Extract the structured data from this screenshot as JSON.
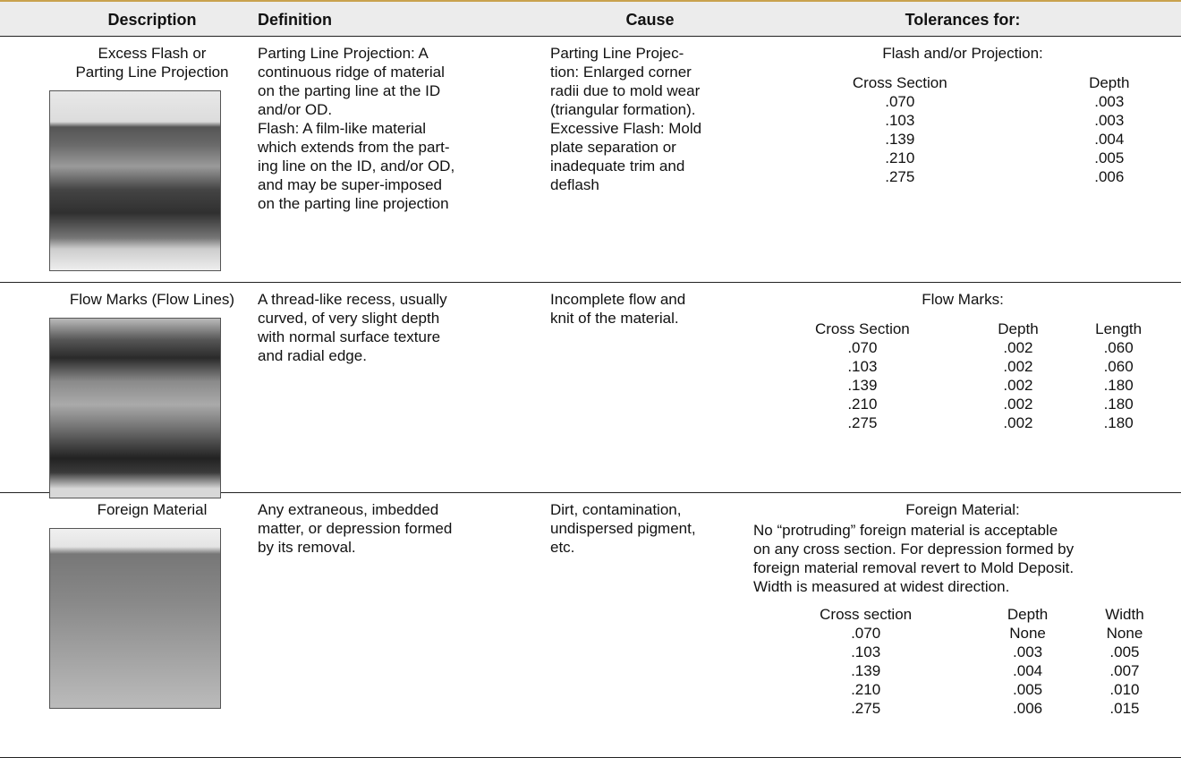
{
  "header": {
    "columns": [
      "Description",
      "Definition",
      "Cause",
      "Tolerances for:"
    ]
  },
  "rows": [
    {
      "description": [
        "Excess Flash or",
        "Parting Line Projection"
      ],
      "definition": [
        "Parting Line Projection: A",
        "continuous ridge of material",
        "on the parting line at the ID",
        "and/or OD.",
        "Flash: A film-like material",
        "which extends from the part-",
        "ing line on the ID, and/or OD,",
        "and may be super-imposed",
        "on the parting line projection"
      ],
      "cause": [
        "Parting Line Projec-",
        "tion: Enlarged corner",
        "radii due to mold wear",
        "(triangular formation).",
        "Excessive Flash: Mold",
        "plate separation or",
        "inadequate trim and",
        "deflash"
      ],
      "tolerances": {
        "title": "Flash and/or Projection:",
        "note": [],
        "columns": [
          "Cross Section",
          "Depth"
        ],
        "rows": [
          [
            ".070",
            ".003"
          ],
          [
            ".103",
            ".003"
          ],
          [
            ".139",
            ".004"
          ],
          [
            ".210",
            ".005"
          ],
          [
            ".275",
            ".006"
          ]
        ]
      }
    },
    {
      "description": [
        "Flow Marks (Flow Lines)"
      ],
      "definition": [
        "A thread-like recess, usually",
        "curved, of very slight depth",
        "with normal surface texture",
        "and radial edge."
      ],
      "cause": [
        "Incomplete flow and",
        "knit of the material."
      ],
      "tolerances": {
        "title": "Flow Marks:",
        "note": [],
        "columns": [
          "Cross Section",
          "Depth",
          "Length"
        ],
        "rows": [
          [
            ".070",
            ".002",
            ".060"
          ],
          [
            ".103",
            ".002",
            ".060"
          ],
          [
            ".139",
            ".002",
            ".180"
          ],
          [
            ".210",
            ".002",
            ".180"
          ],
          [
            ".275",
            ".002",
            ".180"
          ]
        ]
      }
    },
    {
      "description": [
        "Foreign Material"
      ],
      "definition": [
        "Any extraneous, imbedded",
        "matter, or depression formed",
        "by its removal."
      ],
      "cause": [
        "Dirt, contamination,",
        "undispersed pigment,",
        "etc."
      ],
      "tolerances": {
        "title": "Foreign Material:",
        "note": [
          "No “protruding” foreign material is acceptable",
          "on any cross section. For depression formed by",
          "foreign material removal revert to Mold Deposit.",
          "Width is measured at widest direction."
        ],
        "columns": [
          "Cross section",
          "Depth",
          "Width"
        ],
        "rows": [
          [
            ".070",
            "None",
            "None"
          ],
          [
            ".103",
            ".003",
            ".005"
          ],
          [
            ".139",
            ".004",
            ".007"
          ],
          [
            ".210",
            ".005",
            ".010"
          ],
          [
            ".275",
            ".006",
            ".015"
          ]
        ]
      }
    }
  ]
}
